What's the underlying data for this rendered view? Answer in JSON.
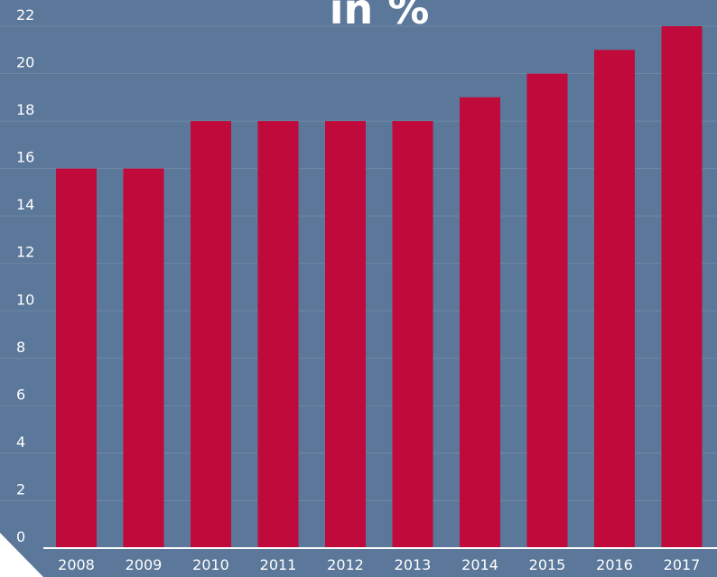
{
  "chart_data": {
    "type": "bar",
    "title": "in %",
    "categories": [
      "2008",
      "2009",
      "2010",
      "2011",
      "2012",
      "2013",
      "2014",
      "2015",
      "2016",
      "2017"
    ],
    "values": [
      16,
      16,
      18,
      18,
      18,
      18,
      19,
      20,
      21,
      22
    ],
    "ylim": [
      0,
      22
    ],
    "yticks": [
      0,
      2,
      4,
      6,
      8,
      10,
      12,
      14,
      16,
      18,
      20,
      22
    ],
    "grid": true,
    "xlabel": "",
    "ylabel": ""
  },
  "colors": {
    "background": "#5b7799",
    "bar": "#c00a3b",
    "grid": "#6f88a6",
    "text": "#ffffff",
    "axis_band": "#6d89ab"
  }
}
